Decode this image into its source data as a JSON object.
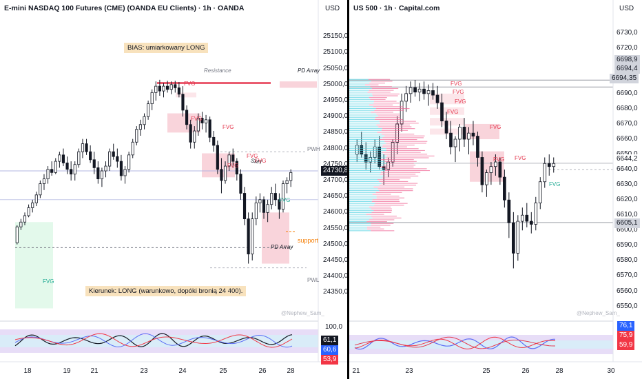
{
  "chart_data": [
    {
      "type": "candlestick",
      "title": "E-mini NASDAQ 100 Futures (CME) (OANDA EU Clients) · 1h · OANDA",
      "currency": "USD",
      "ylim": [
        24300,
        25200
      ],
      "y_ticks": [
        "25150,0",
        "25100,0",
        "25050,0",
        "25000,0",
        "24950,0",
        "24900,0",
        "24850,0",
        "24800,0",
        "24750,0",
        "24700,0",
        "24650,0",
        "24600,0",
        "24550,0",
        "24500,0",
        "24450,0",
        "24400,0",
        "24350,0"
      ],
      "x_ticks": [
        "18",
        "19",
        "21",
        "23",
        "24",
        "25",
        "26",
        "28"
      ],
      "price_badge": "24730,8",
      "candles": [
        [
          24505,
          24560,
          24500,
          24555
        ],
        [
          24555,
          24580,
          24545,
          24570
        ],
        [
          24570,
          24600,
          24560,
          24590
        ],
        [
          24590,
          24625,
          24585,
          24615
        ],
        [
          24615,
          24640,
          24600,
          24630
        ],
        [
          24630,
          24665,
          24620,
          24655
        ],
        [
          24655,
          24700,
          24645,
          24690
        ],
        [
          24690,
          24720,
          24670,
          24705
        ],
        [
          24705,
          24745,
          24690,
          24735
        ],
        [
          24735,
          24760,
          24715,
          24725
        ],
        [
          24725,
          24770,
          24720,
          24760
        ],
        [
          24760,
          24790,
          24740,
          24780
        ],
        [
          24780,
          24800,
          24745,
          24755
        ],
        [
          24755,
          24775,
          24720,
          24735
        ],
        [
          24735,
          24760,
          24700,
          24720
        ],
        [
          24720,
          24760,
          24700,
          24750
        ],
        [
          24750,
          24800,
          24740,
          24790
        ],
        [
          24790,
          24830,
          24770,
          24815
        ],
        [
          24815,
          24830,
          24780,
          24790
        ],
        [
          24790,
          24810,
          24755,
          24765
        ],
        [
          24765,
          24790,
          24720,
          24740
        ],
        [
          24740,
          24760,
          24690,
          24705
        ],
        [
          24705,
          24740,
          24680,
          24730
        ],
        [
          24730,
          24760,
          24710,
          24745
        ],
        [
          24745,
          24800,
          24730,
          24790
        ],
        [
          24790,
          24815,
          24765,
          24775
        ],
        [
          24775,
          24800,
          24740,
          24760
        ],
        [
          24760,
          24780,
          24700,
          24715
        ],
        [
          24715,
          24745,
          24690,
          24735
        ],
        [
          24735,
          24790,
          24725,
          24780
        ],
        [
          24780,
          24830,
          24770,
          24820
        ],
        [
          24820,
          24870,
          24810,
          24860
        ],
        [
          24860,
          24890,
          24840,
          24875
        ],
        [
          24875,
          24910,
          24860,
          24900
        ],
        [
          24900,
          24950,
          24890,
          24940
        ],
        [
          24940,
          24985,
          24920,
          24975
        ],
        [
          24975,
          25010,
          24950,
          24995
        ],
        [
          24995,
          25015,
          24965,
          24980
        ],
        [
          24980,
          25005,
          24960,
          24995
        ],
        [
          24995,
          25012,
          24975,
          24985
        ],
        [
          24985,
          25010,
          24970,
          25000
        ],
        [
          25000,
          25012,
          24975,
          24990
        ],
        [
          24990,
          25008,
          24960,
          24970
        ],
        [
          24970,
          24995,
          24900,
          24920
        ],
        [
          24920,
          24935,
          24860,
          24875
        ],
        [
          24875,
          24890,
          24800,
          24820
        ],
        [
          24820,
          24870,
          24800,
          24855
        ],
        [
          24855,
          24910,
          24840,
          24895
        ],
        [
          24895,
          24915,
          24860,
          24880
        ],
        [
          24880,
          24905,
          24850,
          24890
        ],
        [
          24890,
          24900,
          24820,
          24835
        ],
        [
          24835,
          24855,
          24790,
          24810
        ],
        [
          24810,
          24825,
          24720,
          24735
        ],
        [
          24735,
          24770,
          24660,
          24700
        ],
        [
          24700,
          24760,
          24690,
          24745
        ],
        [
          24745,
          24790,
          24730,
          24780
        ],
        [
          24780,
          24800,
          24740,
          24760
        ],
        [
          24760,
          24770,
          24700,
          24720
        ],
        [
          24720,
          24735,
          24640,
          24660
        ],
        [
          24660,
          24680,
          24560,
          24580
        ],
        [
          24580,
          24600,
          24440,
          24470
        ],
        [
          24470,
          24600,
          24450,
          24580
        ],
        [
          24580,
          24650,
          24560,
          24630
        ],
        [
          24630,
          24660,
          24600,
          24640
        ],
        [
          24640,
          24650,
          24580,
          24600
        ],
        [
          24600,
          24640,
          24570,
          24625
        ],
        [
          24625,
          24680,
          24610,
          24660
        ],
        [
          24660,
          24690,
          24620,
          24640
        ],
        [
          24640,
          24660,
          24580,
          24610
        ],
        [
          24610,
          24700,
          24600,
          24690
        ],
        [
          24690,
          24710,
          24660,
          24700
        ],
        [
          24700,
          24735,
          24680,
          24725
        ]
      ]
    },
    {
      "type": "candlestick",
      "title": "US 500 · 1h · Capital.com",
      "currency": "USD",
      "ylim": [
        6543,
        6738
      ],
      "y_ticks": [
        "6730,0",
        "6720,0",
        "6710,0",
        "6700,0",
        "6690,0",
        "6680,0",
        "6670,0",
        "6660,0",
        "6650,0",
        "6640,0",
        "6630,0",
        "6620,0",
        "6610,0",
        "6600,0",
        "6590,0",
        "6580,0",
        "6570,0",
        "6560,0",
        "6550,0"
      ],
      "x_ticks": [
        "21",
        "23",
        "25",
        "26",
        "28",
        "30"
      ],
      "price_badges": [
        "6698,9",
        "6694,4",
        "6694,35",
        "6644,2",
        "6605,1"
      ],
      "candles": [
        [
          6650,
          6660,
          6645,
          6656
        ],
        [
          6656,
          6665,
          6648,
          6650
        ],
        [
          6650,
          6658,
          6640,
          6645
        ],
        [
          6645,
          6652,
          6638,
          6648
        ],
        [
          6648,
          6660,
          6644,
          6655
        ],
        [
          6655,
          6662,
          6640,
          6642
        ],
        [
          6642,
          6650,
          6630,
          6640
        ],
        [
          6640,
          6648,
          6635,
          6645
        ],
        [
          6645,
          6660,
          6642,
          6658
        ],
        [
          6658,
          6675,
          6650,
          6670
        ],
        [
          6670,
          6690,
          6665,
          6685
        ],
        [
          6685,
          6695,
          6678,
          6690
        ],
        [
          6690,
          6698,
          6684,
          6694
        ],
        [
          6694,
          6699,
          6688,
          6691
        ],
        [
          6691,
          6697,
          6685,
          6693
        ],
        [
          6693,
          6698,
          6686,
          6690
        ],
        [
          6690,
          6696,
          6682,
          6692
        ],
        [
          6692,
          6697,
          6686,
          6689
        ],
        [
          6689,
          6695,
          6680,
          6684
        ],
        [
          6684,
          6690,
          6668,
          6672
        ],
        [
          6672,
          6678,
          6660,
          6664
        ],
        [
          6664,
          6672,
          6650,
          6655
        ],
        [
          6655,
          6662,
          6645,
          6660
        ],
        [
          6660,
          6670,
          6652,
          6668
        ],
        [
          6668,
          6674,
          6655,
          6660
        ],
        [
          6660,
          6668,
          6650,
          6664
        ],
        [
          6664,
          6672,
          6656,
          6662
        ],
        [
          6662,
          6665,
          6642,
          6648
        ],
        [
          6648,
          6652,
          6625,
          6630
        ],
        [
          6630,
          6640,
          6622,
          6638
        ],
        [
          6638,
          6645,
          6630,
          6642
        ],
        [
          6642,
          6650,
          6636,
          6645
        ],
        [
          6645,
          6648,
          6630,
          6635
        ],
        [
          6635,
          6640,
          6615,
          6620
        ],
        [
          6620,
          6625,
          6595,
          6605
        ],
        [
          6605,
          6612,
          6575,
          6585
        ],
        [
          6585,
          6610,
          6580,
          6606
        ],
        [
          6606,
          6615,
          6600,
          6610
        ],
        [
          6610,
          6618,
          6602,
          6606
        ],
        [
          6606,
          6612,
          6598,
          6604
        ],
        [
          6604,
          6622,
          6600,
          6618
        ],
        [
          6618,
          6635,
          6614,
          6632
        ],
        [
          6632,
          6648,
          6628,
          6644
        ],
        [
          6644,
          6650,
          6636,
          6642
        ],
        [
          6642,
          6648,
          6638,
          6644
        ]
      ]
    }
  ],
  "left": {
    "annotations": {
      "bias": "BIAS: umiarkowany LONG",
      "kierunek": "Kierunek: LONG (warunkowo, dopóki bronią 24 400).",
      "resistance": "Resistance",
      "pd_array_top": "PD Array",
      "pd_array_bottom": "PD Array",
      "support": "support",
      "pwh": "PWH",
      "pwl": "PWL",
      "smt": "SMT",
      "fvg1": "FVG",
      "fvg2": "FVG",
      "fvg3": "FVG",
      "fvg4": "FVG",
      "fvg5": "FVG",
      "fvg6": "FVG",
      "fvg_green": "FVG",
      "fvg_green_big": "FVG"
    },
    "watermark": "@Nephew_Sam_",
    "osc": {
      "top_tick": "100,0",
      "badges": [
        "61,1",
        "60,6",
        "53,9"
      ]
    }
  },
  "right": {
    "annotations": {
      "fvg1": "FVG",
      "fvg2": "FVG",
      "fvg3": "FVG",
      "fvg4": "FVG",
      "fvg5": "FVG",
      "fvg6": "FVG",
      "fvg7": "FVG",
      "fvg_green": "FVG"
    },
    "watermark": "@Nephew_Sam_",
    "osc": {
      "badges": [
        "76,1",
        "75,9",
        "59,9"
      ]
    }
  },
  "colors": {
    "bull": "#131722",
    "bear": "#131722",
    "fvg": "#f7c5cf",
    "fvg_green": "#d9f7e4",
    "resistance": "#e53950",
    "support": "#f57c00",
    "badge_blue": "#2962ff",
    "badge_red": "#f23645"
  }
}
